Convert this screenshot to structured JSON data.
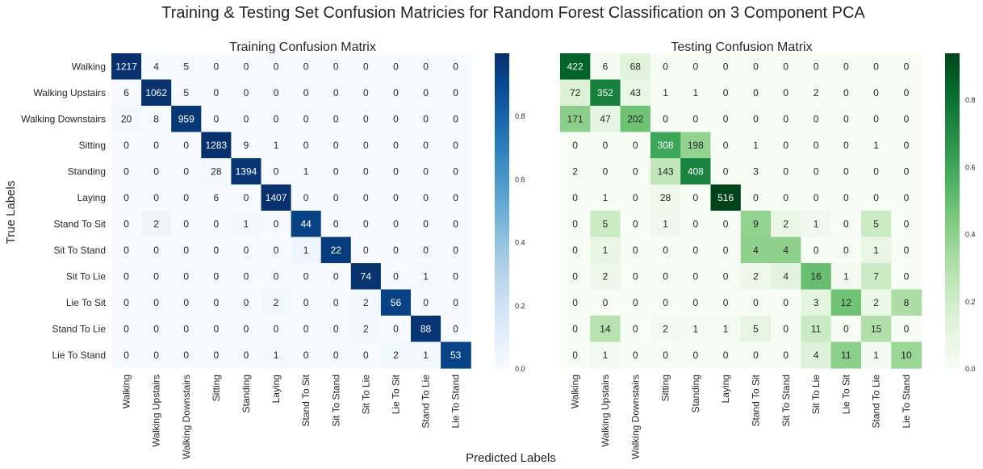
{
  "figure": {
    "title": "Training & Testing Set Confusion Matricies for Random Forest Classification on 3 Component PCA",
    "xlabel": "Predicted Labels",
    "ylabel": "True Labels"
  },
  "chart_data": [
    {
      "type": "heatmap",
      "title": "Training Confusion Matrix",
      "colormap": "Blues",
      "normalize": "row",
      "x_categories": [
        "Walking",
        "Walking Upstairs",
        "Walking Downstairs",
        "Sitting",
        "Standing",
        "Laying",
        "Stand To Sit",
        "Sit To Stand",
        "Sit To Lie",
        "Lie To Sit",
        "Stand To Lie",
        "Lie To Stand"
      ],
      "y_categories": [
        "Walking",
        "Walking Upstairs",
        "Walking Downstairs",
        "Sitting",
        "Standing",
        "Laying",
        "Stand To Sit",
        "Sit To Stand",
        "Sit To Lie",
        "Lie To Sit",
        "Stand To Lie",
        "Lie To Stand"
      ],
      "values": [
        [
          1217,
          4,
          5,
          0,
          0,
          0,
          0,
          0,
          0,
          0,
          0,
          0
        ],
        [
          6,
          1062,
          5,
          0,
          0,
          0,
          0,
          0,
          0,
          0,
          0,
          0
        ],
        [
          20,
          8,
          959,
          0,
          0,
          0,
          0,
          0,
          0,
          0,
          0,
          0
        ],
        [
          0,
          0,
          0,
          1283,
          9,
          1,
          0,
          0,
          0,
          0,
          0,
          0
        ],
        [
          0,
          0,
          0,
          28,
          1394,
          0,
          1,
          0,
          0,
          0,
          0,
          0
        ],
        [
          0,
          0,
          0,
          6,
          0,
          1407,
          0,
          0,
          0,
          0,
          0,
          0
        ],
        [
          0,
          2,
          0,
          0,
          1,
          0,
          44,
          0,
          0,
          0,
          0,
          0
        ],
        [
          0,
          0,
          0,
          0,
          0,
          0,
          1,
          22,
          0,
          0,
          0,
          0
        ],
        [
          0,
          0,
          0,
          0,
          0,
          0,
          0,
          0,
          74,
          0,
          1,
          0
        ],
        [
          0,
          0,
          0,
          0,
          0,
          2,
          0,
          0,
          2,
          56,
          0,
          0
        ],
        [
          0,
          0,
          0,
          0,
          0,
          0,
          0,
          0,
          2,
          0,
          88,
          0
        ],
        [
          0,
          0,
          0,
          0,
          0,
          1,
          0,
          0,
          0,
          2,
          1,
          53
        ]
      ],
      "colorbar_ticks": [
        "0.0",
        "0.2",
        "0.4",
        "0.6",
        "0.8"
      ],
      "colorbar_range": [
        0,
        1
      ]
    },
    {
      "type": "heatmap",
      "title": "Testing Confusion Matrix",
      "colormap": "Greens",
      "normalize": "row",
      "x_categories": [
        "Walking",
        "Walking Upstairs",
        "Walking Downstairs",
        "Sitting",
        "Standing",
        "Laying",
        "Stand To Sit",
        "Sit To Stand",
        "Sit To Lie",
        "Lie To Sit",
        "Stand To Lie",
        "Lie To Stand"
      ],
      "y_categories": [
        "Walking",
        "Walking Upstairs",
        "Walking Downstairs",
        "Sitting",
        "Standing",
        "Laying",
        "Stand To Sit",
        "Sit To Stand",
        "Sit To Lie",
        "Lie To Sit",
        "Stand To Lie",
        "Lie To Stand"
      ],
      "values": [
        [
          422,
          6,
          68,
          0,
          0,
          0,
          0,
          0,
          0,
          0,
          0,
          0
        ],
        [
          72,
          352,
          43,
          1,
          1,
          0,
          0,
          0,
          2,
          0,
          0,
          0
        ],
        [
          171,
          47,
          202,
          0,
          0,
          0,
          0,
          0,
          0,
          0,
          0,
          0
        ],
        [
          0,
          0,
          0,
          308,
          198,
          0,
          1,
          0,
          0,
          0,
          1,
          0
        ],
        [
          2,
          0,
          0,
          143,
          408,
          0,
          3,
          0,
          0,
          0,
          0,
          0
        ],
        [
          0,
          1,
          0,
          28,
          0,
          516,
          0,
          0,
          0,
          0,
          0,
          0
        ],
        [
          0,
          5,
          0,
          1,
          0,
          0,
          9,
          2,
          1,
          0,
          5,
          0
        ],
        [
          0,
          1,
          0,
          0,
          0,
          0,
          4,
          4,
          0,
          0,
          1,
          0
        ],
        [
          0,
          2,
          0,
          0,
          0,
          0,
          2,
          4,
          16,
          1,
          7,
          0
        ],
        [
          0,
          0,
          0,
          0,
          0,
          0,
          0,
          0,
          3,
          12,
          2,
          8
        ],
        [
          0,
          14,
          0,
          2,
          1,
          1,
          5,
          0,
          11,
          0,
          15,
          0
        ],
        [
          0,
          1,
          0,
          0,
          0,
          0,
          0,
          0,
          4,
          11,
          1,
          10
        ]
      ],
      "colorbar_ticks": [
        "0.0",
        "0.2",
        "0.4",
        "0.6",
        "0.8"
      ],
      "colorbar_range": [
        0,
        0.94
      ]
    }
  ]
}
